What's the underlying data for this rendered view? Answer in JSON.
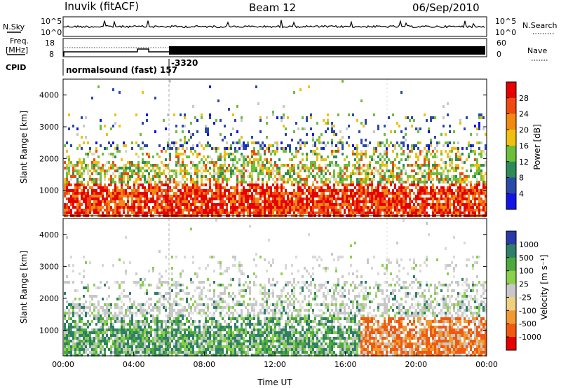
{
  "header": {
    "station": "Inuvik (fitACF)",
    "beam": "Beam 12",
    "date": "06/Sep/2010"
  },
  "nsky_panel": {
    "left_label": "N.Sky",
    "left_ticks": [
      "10^5",
      "10^0"
    ],
    "right_ticks": [
      "10^5",
      "10^0"
    ],
    "right_label": "N.Search"
  },
  "freq_panel": {
    "left_label_line1": "Freq.",
    "left_label_line2": "[MHz]",
    "left_ticks": [
      "18",
      "8"
    ],
    "right_ticks": [
      "60",
      "0"
    ],
    "right_label": "Nave"
  },
  "cpid_panel": {
    "label": "CPID",
    "program": "normalsound (fast) 157",
    "program2": "-3320"
  },
  "chart_data": [
    {
      "type": "heatmap",
      "panel": "power",
      "ylabel": "Slant Range [km]",
      "yticks": [
        "1000",
        "2000",
        "3000",
        "4000"
      ],
      "ylim": [
        200,
        4500
      ],
      "xlim": [
        0,
        24
      ],
      "colorbar_label": "Power [dB]",
      "colorbar_ticks": [
        "4",
        "8",
        "12",
        "16",
        "20",
        "24",
        "28"
      ],
      "colorbar_colors": [
        "#1414e6",
        "#2a4aa8",
        "#2e8b57",
        "#6cbf3a",
        "#f0c010",
        "#f08a10",
        "#f04a10",
        "#e60000"
      ]
    },
    {
      "type": "heatmap",
      "panel": "velocity",
      "ylabel": "Slant Range [km]",
      "yticks": [
        "1000",
        "2000",
        "3000",
        "4000"
      ],
      "ylim": [
        200,
        4500
      ],
      "xlim": [
        0,
        24
      ],
      "xlabel": "Time UT",
      "xticks": [
        "00:00",
        "04:00",
        "08:00",
        "12:00",
        "16:00",
        "20:00",
        "00:00"
      ],
      "colorbar_label": "Velocity [m s⁻¹]",
      "colorbar_ticks": [
        "1000",
        "500",
        "100",
        "25",
        "-25",
        "-100",
        "-500",
        "-1000"
      ],
      "colorbar_colors": [
        "#2a3aa8",
        "#2e7f6a",
        "#4caa3a",
        "#8ad04a",
        "#c8c8c8",
        "#f0d080",
        "#f09a30",
        "#f05a10",
        "#e60000"
      ]
    }
  ]
}
